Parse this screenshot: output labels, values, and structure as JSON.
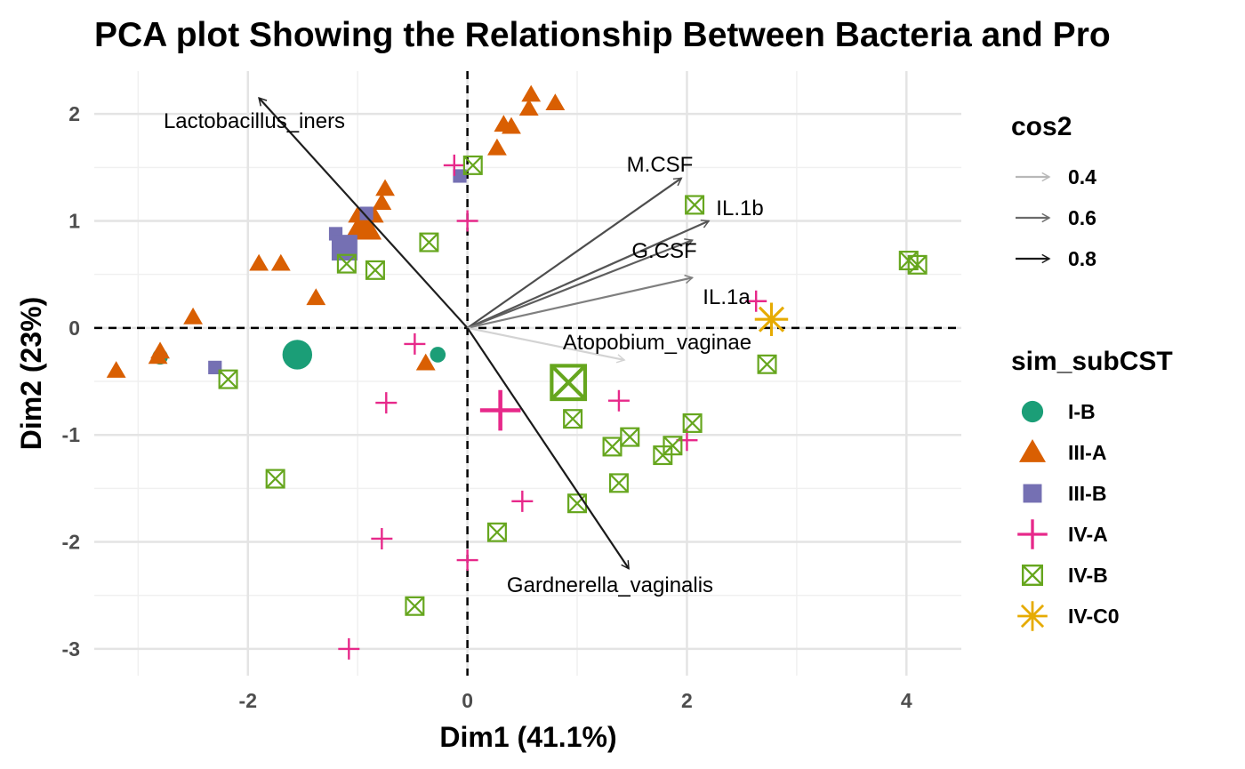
{
  "chart_data": {
    "type": "scatter",
    "title": "PCA plot Showing the Relationship Between Bacteria and Pro",
    "xlabel": "Dim1 (41.1%)",
    "ylabel": "Dim2 (23%)",
    "xlim": [
      -3.4,
      4.5
    ],
    "ylim": [
      -3.25,
      2.4
    ],
    "x_ticks": [
      -2,
      0,
      2,
      4
    ],
    "y_ticks": [
      2,
      1,
      0,
      -1,
      -2,
      -3
    ],
    "grid": true,
    "legends": [
      {
        "title": "cos2",
        "entries": [
          {
            "label": "0.4",
            "color": "#b8b8b8"
          },
          {
            "label": "0.6",
            "color": "#6a6a6a"
          },
          {
            "label": "0.8",
            "color": "#1a1a1a"
          }
        ]
      },
      {
        "title": "sim_subCST",
        "entries": [
          {
            "label": "I-B",
            "shape": "circle",
            "color": "#1b9e77"
          },
          {
            "label": "III-A",
            "shape": "triangle",
            "color": "#d95f02"
          },
          {
            "label": "III-B",
            "shape": "square",
            "color": "#7570b3"
          },
          {
            "label": "IV-A",
            "shape": "plus",
            "color": "#e7298a"
          },
          {
            "label": "IV-B",
            "shape": "boxx",
            "color": "#66a61e"
          },
          {
            "label": "IV-C0",
            "shape": "star",
            "color": "#e6ab02"
          }
        ]
      }
    ],
    "variables": [
      {
        "name": "Lactobacillus_iners",
        "x": -1.9,
        "y": 2.15,
        "cos2": 0.88,
        "color": "#1f1f1f"
      },
      {
        "name": "M.CSF",
        "x": 1.95,
        "y": 1.4,
        "cos2": 0.7,
        "color": "#4d4d4d"
      },
      {
        "name": "IL.1b",
        "x": 2.2,
        "y": 1.0,
        "cos2": 0.68,
        "color": "#555555"
      },
      {
        "name": "G.CSF",
        "x": 2.05,
        "y": 0.82,
        "cos2": 0.62,
        "color": "#5e5e5e"
      },
      {
        "name": "IL.1a",
        "x": 2.05,
        "y": 0.47,
        "cos2": 0.55,
        "color": "#7f7f7f"
      },
      {
        "name": "Atopobium_vaginae",
        "x": 1.43,
        "y": -0.3,
        "cos2": 0.3,
        "color": "#d3d3d3"
      },
      {
        "name": "Gardnerella_vaginalis",
        "x": 1.47,
        "y": -2.25,
        "cos2": 0.9,
        "color": "#1a1a1a"
      }
    ],
    "groups": [
      {
        "name": "I-B",
        "points": [
          [
            -2.8,
            -0.27
          ],
          [
            -0.27,
            -0.25
          ]
        ],
        "centroid": [
          -1.55,
          -0.25
        ]
      },
      {
        "name": "III-A",
        "points": [
          [
            -3.2,
            -0.4
          ],
          [
            -2.8,
            -0.22
          ],
          [
            -2.82,
            -0.27
          ],
          [
            -2.5,
            0.1
          ],
          [
            -1.9,
            0.6
          ],
          [
            -1.7,
            0.6
          ],
          [
            -1.38,
            0.28
          ],
          [
            -1.0,
            1.05
          ],
          [
            -0.95,
            1.0
          ],
          [
            -0.85,
            1.05
          ],
          [
            -0.78,
            1.17
          ],
          [
            -0.75,
            1.3
          ],
          [
            -0.38,
            -0.33
          ],
          [
            0.27,
            1.68
          ],
          [
            0.33,
            1.9
          ],
          [
            0.4,
            1.88
          ],
          [
            0.56,
            2.05
          ],
          [
            0.58,
            2.18
          ],
          [
            0.8,
            2.1
          ]
        ],
        "centroid": [
          -0.95,
          0.95
        ]
      },
      {
        "name": "III-B",
        "points": [
          [
            -2.3,
            -0.37
          ],
          [
            -1.2,
            0.88
          ],
          [
            -0.92,
            1.07
          ],
          [
            -0.07,
            1.42
          ]
        ],
        "centroid": [
          -1.12,
          0.75
        ]
      },
      {
        "name": "IV-A",
        "points": [
          [
            -1.08,
            -3.0
          ],
          [
            -0.78,
            -1.97
          ],
          [
            -0.74,
            -0.7
          ],
          [
            -0.48,
            -0.15
          ],
          [
            -0.12,
            1.52
          ],
          [
            0.0,
            1.0
          ],
          [
            0.0,
            -2.17
          ],
          [
            0.5,
            -1.62
          ],
          [
            1.38,
            -0.68
          ],
          [
            2.0,
            -1.05
          ],
          [
            2.63,
            0.25
          ]
        ],
        "centroid": [
          0.3,
          -0.77
        ]
      },
      {
        "name": "IV-B",
        "points": [
          [
            -2.18,
            -0.48
          ],
          [
            -1.75,
            -1.41
          ],
          [
            -1.1,
            0.6
          ],
          [
            -0.84,
            0.54
          ],
          [
            -0.48,
            -2.6
          ],
          [
            -0.35,
            0.8
          ],
          [
            0.05,
            1.52
          ],
          [
            0.27,
            -1.91
          ],
          [
            0.96,
            -0.85
          ],
          [
            1.0,
            -1.64
          ],
          [
            1.32,
            -1.11
          ],
          [
            1.38,
            -1.45
          ],
          [
            1.48,
            -1.02
          ],
          [
            1.78,
            -1.19
          ],
          [
            1.87,
            -1.1
          ],
          [
            2.05,
            -0.89
          ],
          [
            2.07,
            1.15
          ],
          [
            2.73,
            -0.34
          ],
          [
            4.02,
            0.63
          ],
          [
            4.1,
            0.59
          ]
        ],
        "centroid": [
          0.92,
          -0.51
        ]
      },
      {
        "name": "IV-C0",
        "points": [
          [
            2.77,
            0.08
          ]
        ],
        "centroid": [
          2.77,
          0.08
        ]
      }
    ]
  }
}
